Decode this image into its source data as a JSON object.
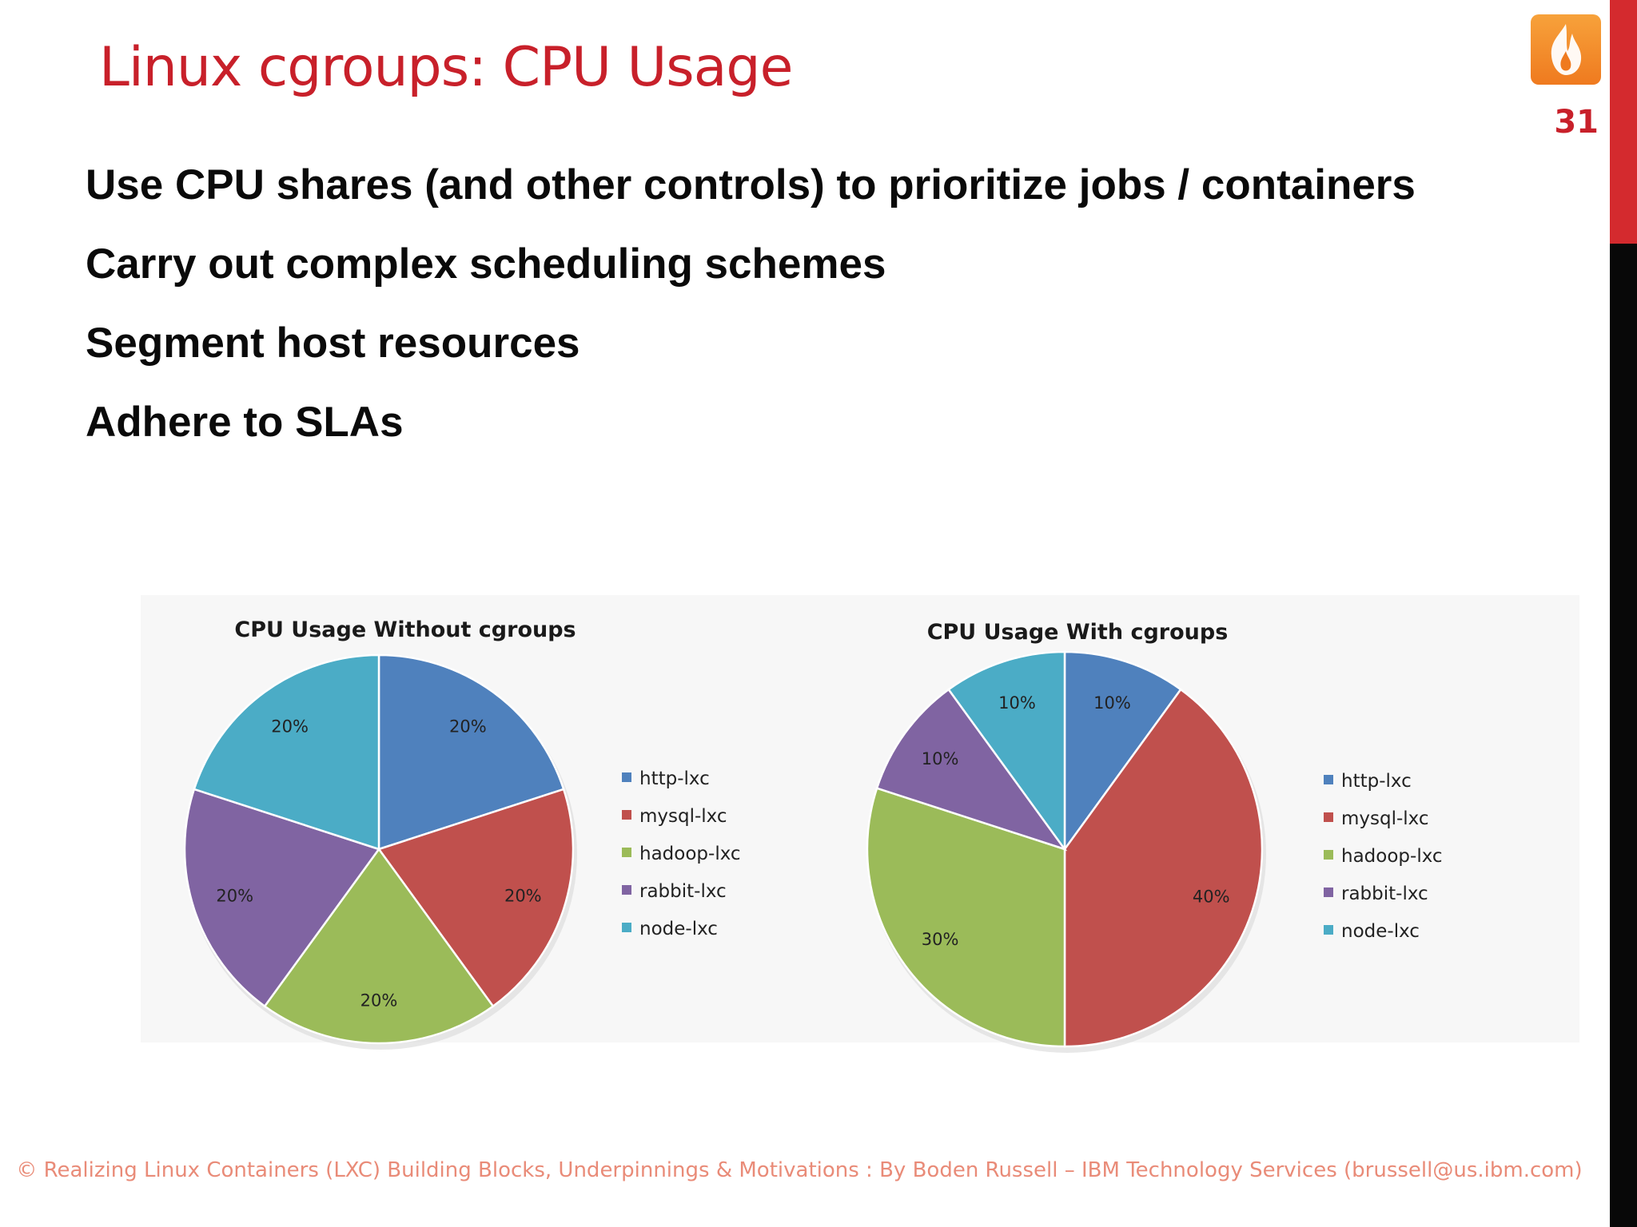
{
  "slide": {
    "title": "Linux cgroups: CPU Usage",
    "page_number": "31",
    "bullets": [
      "Use CPU shares (and other controls) to prioritize jobs / containers",
      "Carry out complex scheduling schemes",
      "Segment host resources",
      "Adhere to SLAs"
    ],
    "footer": "© Realizing Linux Containers (LXC) Building Blocks, Underpinnings & Motivations : By Boden Russell – IBM Technology Services (brussell@us.ibm.com)"
  },
  "colors": {
    "title": "#c8202a",
    "http-lxc": "#4f81bd",
    "mysql-lxc": "#c0504d",
    "hadoop-lxc": "#9bbb59",
    "rabbit-lxc": "#8064a2",
    "node-lxc": "#4bacc6"
  },
  "icons": {
    "logo": "flame-logo-icon"
  },
  "chart_data": [
    {
      "type": "pie",
      "title": "CPU Usage Without cgroups",
      "categories": [
        "http-lxc",
        "mysql-lxc",
        "hadoop-lxc",
        "rabbit-lxc",
        "node-lxc"
      ],
      "values": [
        20,
        20,
        20,
        20,
        20
      ],
      "data_labels": [
        "20%",
        "20%",
        "20%",
        "20%",
        "20%"
      ],
      "legend": "right"
    },
    {
      "type": "pie",
      "title": "CPU Usage With cgroups",
      "categories": [
        "http-lxc",
        "mysql-lxc",
        "hadoop-lxc",
        "rabbit-lxc",
        "node-lxc"
      ],
      "values": [
        10,
        40,
        30,
        10,
        10
      ],
      "data_labels": [
        "10%",
        "40%",
        "30%",
        "10%",
        "10%"
      ],
      "legend": "right"
    }
  ]
}
